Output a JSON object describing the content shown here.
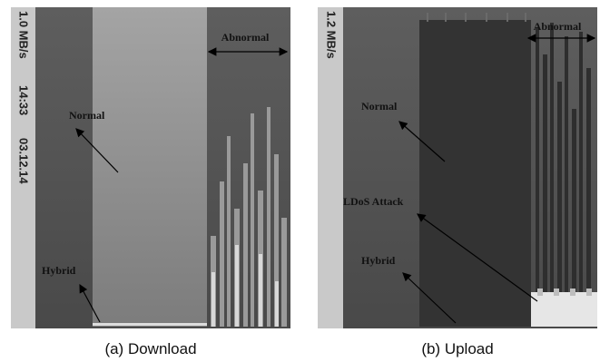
{
  "panels": [
    {
      "caption": "(a) Download",
      "side_labels": [
        "1.0 MB/s",
        "14:33",
        "03.12.14"
      ],
      "annotations": {
        "abnormal": "Abnormal",
        "normal": "Normal",
        "hybrid": "Hybrid"
      }
    },
    {
      "caption": "(b) Upload",
      "side_labels": [
        "1.2 MB/s"
      ],
      "annotations": {
        "abnormal": "Abnormal",
        "normal": "Normal",
        "ldos": "LDoS Attack",
        "hybrid": "Hybrid"
      }
    }
  ]
}
